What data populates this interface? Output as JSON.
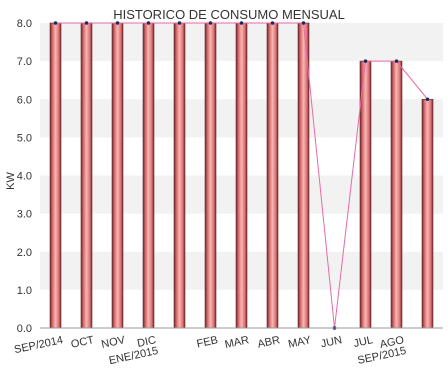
{
  "chart_data": {
    "type": "bar",
    "title": "HISTORICO DE CONSUMO MENSUAL",
    "xlabel": "",
    "ylabel": "KW",
    "ylim": [
      0,
      8
    ],
    "yticks": [
      "0.0",
      "1.0",
      "2.0",
      "3.0",
      "4.0",
      "5.0",
      "6.0",
      "7.0",
      "8.0"
    ],
    "grid": "alternating horizontal bands",
    "legend": "none",
    "categories": [
      "SEP/2014",
      "OCT",
      "NOV",
      "DIC",
      "ENE/2015",
      "FEB",
      "MAR",
      "ABR",
      "MAY",
      "JUN",
      "JUL",
      "AGO",
      "SEP/2015"
    ],
    "category_lines": [
      [
        "SEP/2014"
      ],
      [
        "OCT"
      ],
      [
        "NOV"
      ],
      [
        "DIC",
        "ENE/2015"
      ],
      [],
      [
        "FEB"
      ],
      [
        "MAR"
      ],
      [
        "ABR"
      ],
      [
        "MAY"
      ],
      [
        "JUN"
      ],
      [
        "JUL"
      ],
      [
        "AGO",
        "SEP/2015"
      ],
      []
    ],
    "series": [
      {
        "values": [
          8,
          8,
          8,
          8,
          8,
          8,
          8,
          8,
          8,
          0,
          7,
          7,
          6
        ]
      }
    ],
    "colors": {
      "bar": "#e07070",
      "bar_edge": "#6a2a30",
      "bar_highlight": "#f4b8b8",
      "line": "#e86aa8",
      "marker": "#1a2a60",
      "band": "#f2f2f2",
      "axis": "#999999"
    }
  }
}
